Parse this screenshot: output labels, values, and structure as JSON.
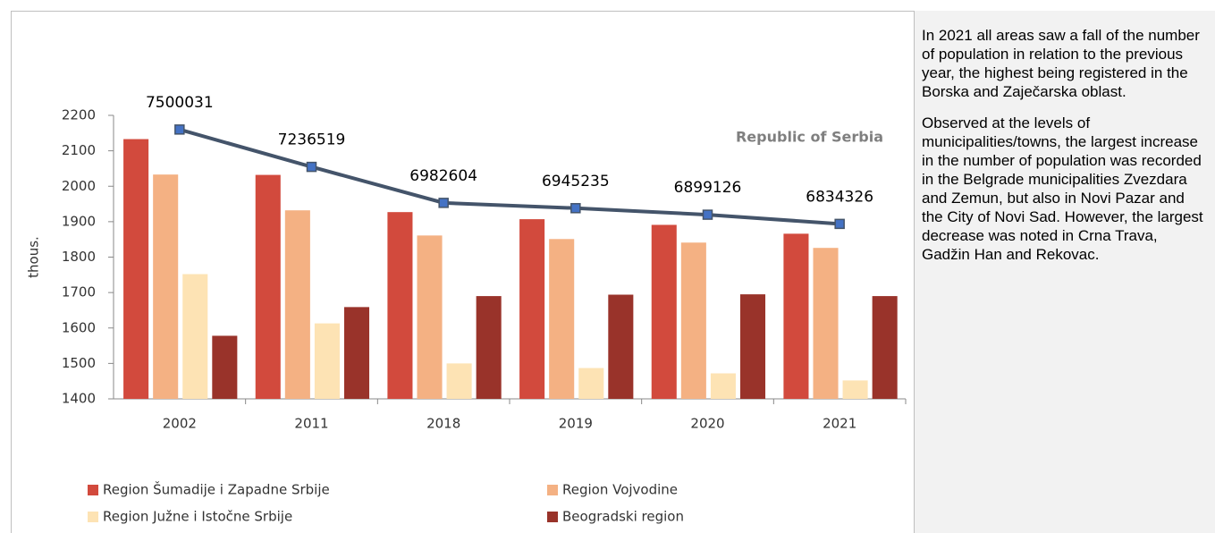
{
  "chart_data": {
    "type": "bar",
    "y_label": "thous.",
    "categories": [
      "2002",
      "2011",
      "2018",
      "2019",
      "2020",
      "2021"
    ],
    "series": [
      {
        "name": "Region Šumadije i Zapadne Srbije",
        "color": "#d24a3d",
        "values": [
          2133,
          2032,
          1927,
          1907,
          1891,
          1866
        ]
      },
      {
        "name": "Region Vojvodine",
        "color": "#f4b183",
        "values": [
          2033,
          1932,
          1861,
          1851,
          1841,
          1826
        ]
      },
      {
        "name": "Region Južne i Istočne Srbije",
        "color": "#fde3b4",
        "values": [
          1752,
          1613,
          1500,
          1487,
          1472,
          1452
        ]
      },
      {
        "name": "Beogradski region",
        "color": "#99332a",
        "values": [
          1578,
          1659,
          1690,
          1694,
          1695,
          1690
        ]
      },
      {
        "name": "Republic of Serbia",
        "type": "line",
        "axis": "y2",
        "color": "#44546a",
        "marker_color": "#4472c4",
        "values": [
          7500031,
          7236519,
          6982604,
          6945235,
          6899126,
          6834326
        ]
      }
    ],
    "ylim": [
      1400,
      2200
    ],
    "yticks": [
      1400,
      1500,
      1600,
      1700,
      1800,
      1900,
      2000,
      2100,
      2200
    ],
    "y2lim": [
      5600000,
      7600000
    ],
    "legend": "bottom"
  },
  "notes": [
    "In 2021 all areas saw a fall of the number of population in relation to the previous year, the highest being registered in the Borska and Zaječarska oblast.",
    "Observed at the levels of municipalities/towns, the largest increase in the number of population was recorded in the Belgrade municipalities Zvezdara and Zemun, but also in Novi Pazar and the City of Novi Sad. However, the largest decrease was noted in Crna Trava, Gadžin Han and Rekovac."
  ]
}
